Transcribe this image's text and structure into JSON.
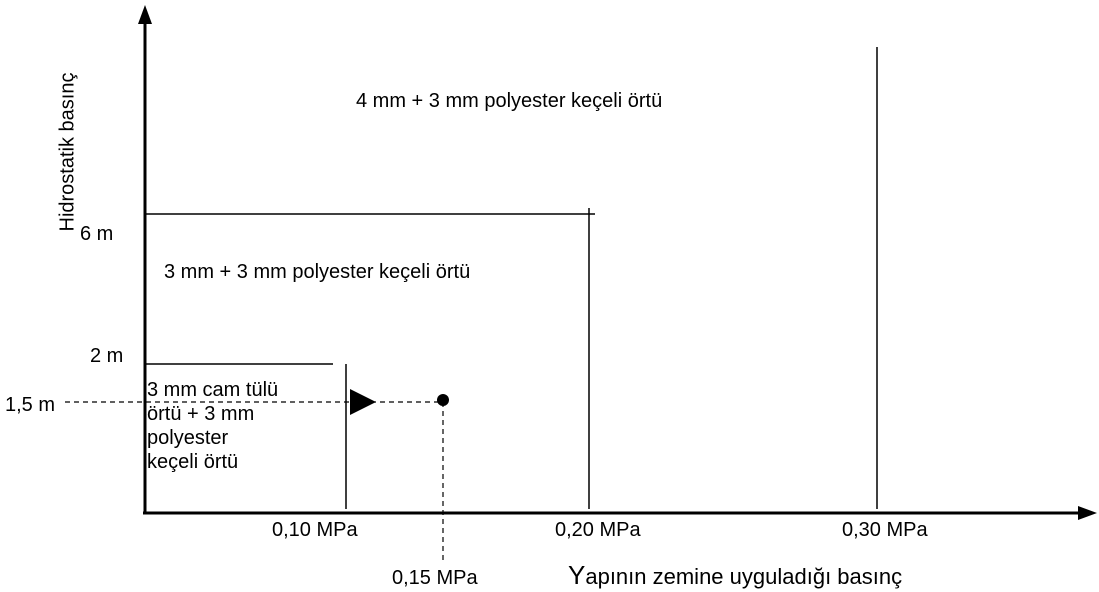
{
  "axes": {
    "y_label": "Hidrostatik basınç",
    "x_label_first": "Y",
    "x_label_rest": "apının zemine uyguladığı basınç"
  },
  "y_ticks": [
    "6 m",
    "2 m",
    "1,5 m"
  ],
  "x_ticks": [
    "0,10 MPa",
    "0,20 MPa",
    "0,30 MPa",
    "0,15 MPa"
  ],
  "zones": {
    "top": "4 mm + 3 mm polyester keçeli örtü",
    "middle": "3 mm + 3 mm polyester keçeli örtü",
    "low_lines": [
      "3 mm cam tülü",
      "örtü + 3 mm",
      "polyester",
      "keçeli örtü"
    ]
  }
}
